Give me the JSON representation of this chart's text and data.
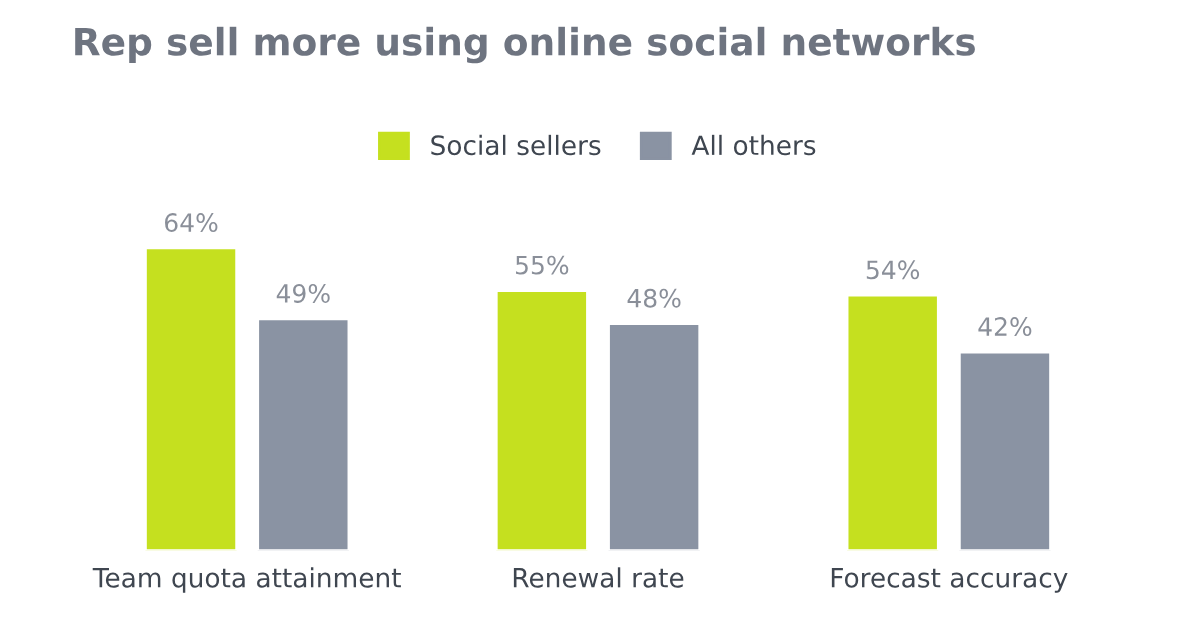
{
  "chart_data": {
    "type": "bar",
    "title": "Rep sell more using online social networks",
    "categories": [
      "Team quota attainment",
      "Renewal rate",
      "Forecast accuracy"
    ],
    "series": [
      {
        "name": "Social sellers",
        "color": "#c5e01f",
        "values": [
          64,
          55,
          54
        ],
        "value_labels": [
          "64%",
          "55%",
          "54%"
        ]
      },
      {
        "name": "All others",
        "color": "#8a93a3",
        "values": [
          49,
          48,
          42
        ],
        "value_labels": [
          "49%",
          "48%",
          "42%"
        ]
      }
    ],
    "legend": "top",
    "grid": false
  }
}
